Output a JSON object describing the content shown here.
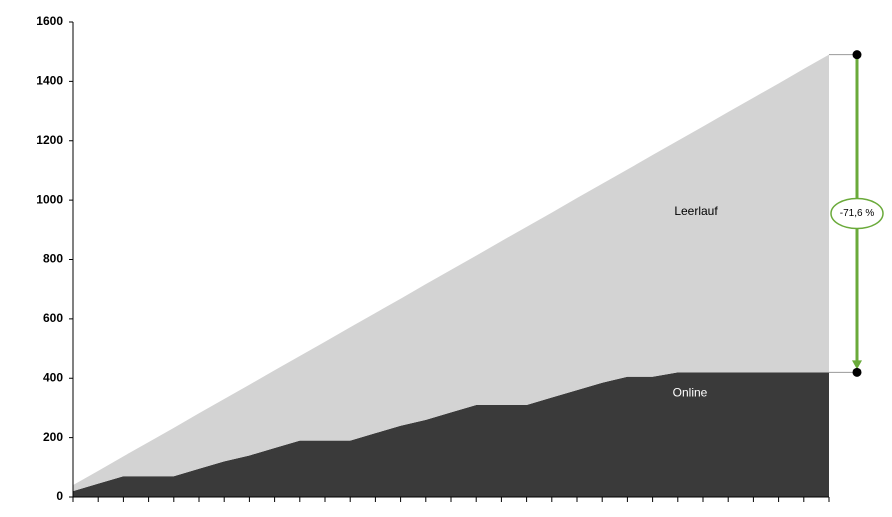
{
  "chart_data": {
    "type": "stacked-area",
    "categories": [
      null,
      null,
      null,
      null,
      null,
      null,
      null,
      null,
      null,
      null,
      null,
      null,
      null,
      null,
      null,
      null,
      null,
      null,
      null,
      null,
      null,
      null,
      null,
      null,
      null,
      null,
      null,
      null,
      null,
      null,
      null
    ],
    "series": [
      {
        "name": "Online",
        "color": "#3a3a3a",
        "values": [
          20,
          45,
          70,
          70,
          70,
          95,
          120,
          140,
          165,
          190,
          190,
          190,
          215,
          240,
          260,
          285,
          310,
          310,
          310,
          335,
          360,
          385,
          405,
          405,
          420,
          420,
          420,
          420,
          420,
          420,
          420
        ]
      },
      {
        "name": "Leerlauf",
        "color": "#d3d3d3",
        "values": [
          20,
          43,
          67,
          115,
          163,
          187,
          210,
          238,
          262,
          285,
          333,
          382,
          405,
          428,
          457,
          480,
          503,
          552,
          600,
          623,
          647,
          670,
          698,
          747,
          780,
          828,
          877,
          925,
          973,
          1022,
          1070
        ]
      }
    ],
    "ylim": [
      0,
      1600
    ],
    "yticks": [
      0,
      200,
      400,
      600,
      800,
      1000,
      1200,
      1400,
      1600
    ],
    "annotation": "-71,6 %",
    "annotation_color": "#6aaa3a"
  }
}
